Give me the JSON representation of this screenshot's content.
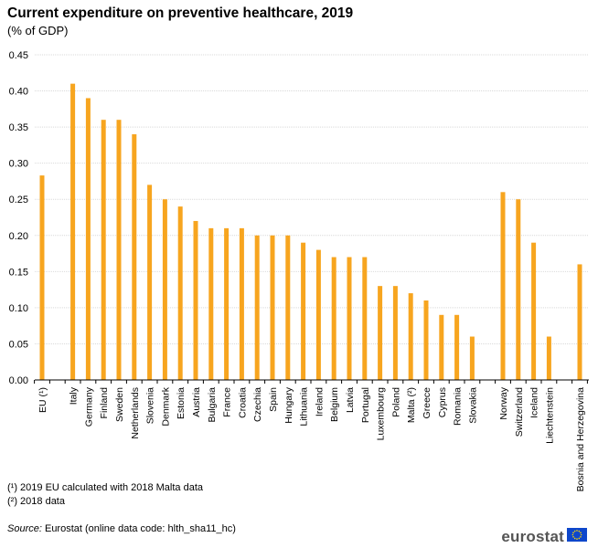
{
  "header": {
    "title": "Current expenditure on preventive healthcare, 2019",
    "subtitle": "(% of GDP)"
  },
  "footnotes": [
    "(¹) 2019 EU calculated with 2018 Malta data",
    "(²) 2018 data"
  ],
  "source": {
    "label": "Source:",
    "text": " Eurostat (online data code: hlth_sha11_hc)"
  },
  "logo": {
    "text": "eurostat"
  },
  "colors": {
    "bar": "#F7A51F",
    "grid": "#D9D9D9",
    "axis": "#000000",
    "flag": "#0E47CB",
    "stars": "#FFD500"
  },
  "chart_data": {
    "type": "bar",
    "title": "Current expenditure on preventive healthcare, 2019",
    "ylabel": "% of GDP",
    "ylim": [
      0,
      0.45
    ],
    "yticks": [
      "0.00",
      "0.05",
      "0.10",
      "0.15",
      "0.20",
      "0.25",
      "0.30",
      "0.35",
      "0.40",
      "0.45"
    ],
    "grid": true,
    "categories": [
      "EU (¹)",
      "",
      "Italy",
      "Germany",
      "Finland",
      "Sweden",
      "Netherlands",
      "Slovenia",
      "Denmark",
      "Estonia",
      "Austria",
      "Bulgaria",
      "France",
      "Croatia",
      "Czechia",
      "Spain",
      "Hungary",
      "Lithuania",
      "Ireland",
      "Belgium",
      "Latvia",
      "Portugal",
      "Luxembourg",
      "Poland",
      "Malta (²)",
      "Greece",
      "Cyprus",
      "Romania",
      "Slovakia",
      "",
      "Norway",
      "Switzerland",
      "Iceland",
      "Liechtenstein",
      "",
      "Bosnia and Herzegovina"
    ],
    "values": [
      0.283,
      null,
      0.41,
      0.39,
      0.36,
      0.36,
      0.34,
      0.27,
      0.25,
      0.24,
      0.22,
      0.21,
      0.21,
      0.21,
      0.2,
      0.2,
      0.2,
      0.19,
      0.18,
      0.17,
      0.17,
      0.17,
      0.13,
      0.13,
      0.12,
      0.11,
      0.09,
      0.09,
      0.06,
      null,
      0.26,
      0.25,
      0.19,
      0.06,
      null,
      0.16
    ]
  }
}
